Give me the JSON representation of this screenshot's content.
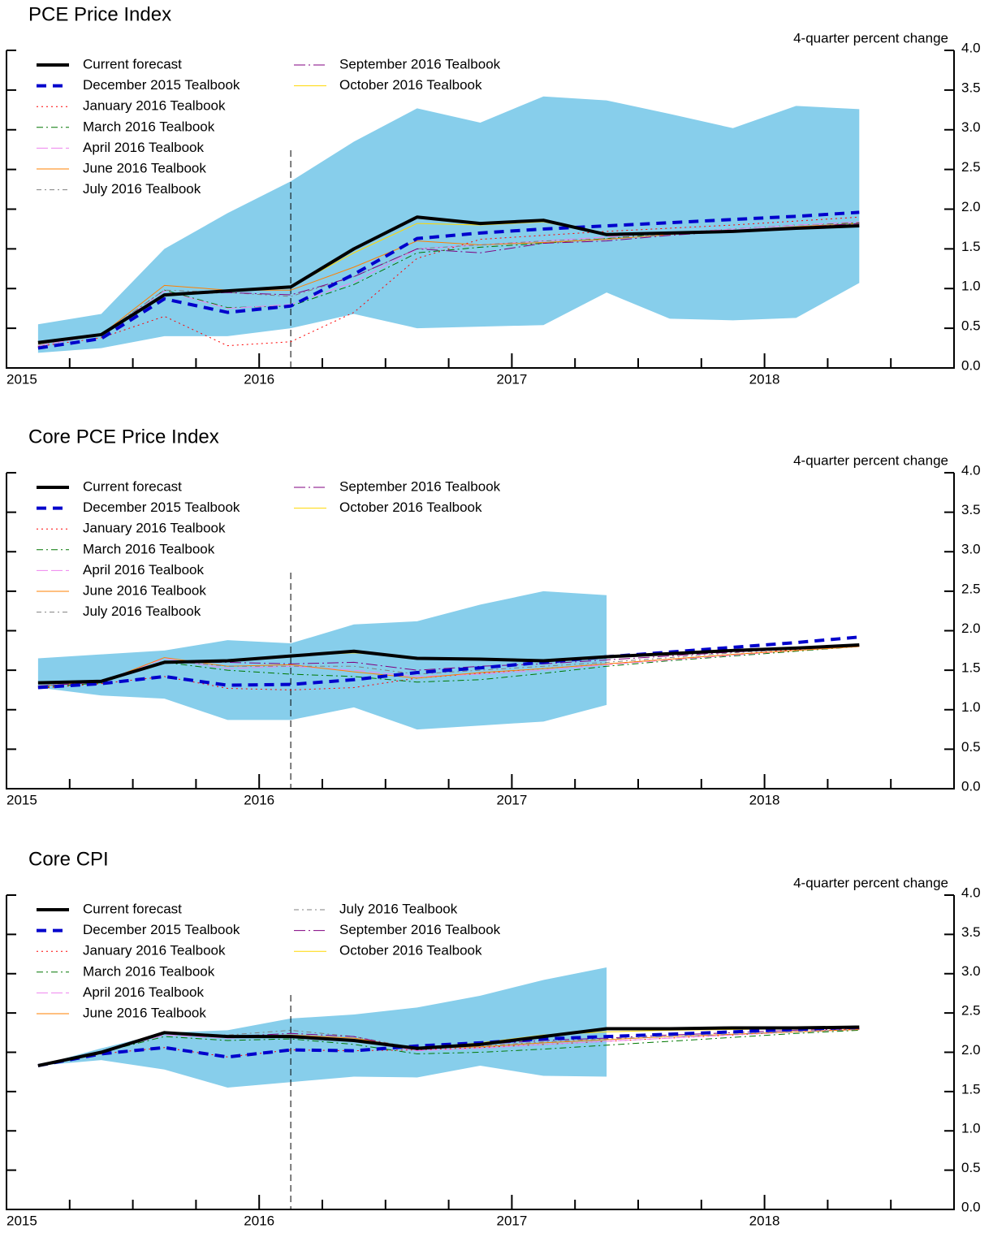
{
  "chart_data": [
    {
      "type": "line",
      "title": "PCE Price Index",
      "ylabel": "4-quarter percent change",
      "x": [
        2015.125,
        2015.375,
        2015.625,
        2015.875,
        2016.125,
        2016.375,
        2016.625,
        2016.875,
        2017.125,
        2017.375,
        2017.625,
        2017.875,
        2018.125,
        2018.375
      ],
      "xlim": [
        2015,
        2018.75
      ],
      "xticks": [
        2015,
        2016,
        2017,
        2018
      ],
      "xminorticks": [
        2015.25,
        2015.5,
        2015.75,
        2016.25,
        2016.5,
        2016.75,
        2017.25,
        2017.5,
        2017.75,
        2018.25,
        2018.5
      ],
      "vline": 2016.125,
      "ylim": [
        0,
        4
      ],
      "yticks": [
        {
          "value": 0,
          "label": "0.0"
        },
        {
          "value": 0.5,
          "label": "0.5"
        },
        {
          "value": 1,
          "label": "1.0"
        },
        {
          "value": 1.5,
          "label": "1.5"
        },
        {
          "value": 2,
          "label": "2.0"
        },
        {
          "value": 2.5,
          "label": "2.5"
        },
        {
          "value": 3,
          "label": "3.0"
        },
        {
          "value": 3.5,
          "label": "3.5"
        },
        {
          "value": 4,
          "label": "4.0"
        }
      ],
      "band": {
        "color": "#87ceeb",
        "upper": [
          0.55,
          0.68,
          1.5,
          1.95,
          2.35,
          2.85,
          3.27,
          3.09,
          3.42,
          3.37,
          3.2,
          3.02,
          3.3,
          3.26
        ],
        "lower": [
          0.19,
          0.25,
          0.4,
          0.4,
          0.5,
          0.68,
          0.5,
          0.52,
          0.54,
          0.95,
          0.62,
          0.6,
          0.63,
          1.07
        ]
      },
      "series": [
        {
          "name": "Current forecast",
          "color": "#000000",
          "width": 4,
          "dash": "none",
          "values": [
            0.32,
            0.42,
            0.92,
            0.97,
            1.02,
            1.5,
            1.9,
            1.82,
            1.86,
            1.68,
            1.7,
            1.72,
            1.76,
            1.79
          ]
        },
        {
          "name": "December 2015 Tealbook",
          "color": "#0000cc",
          "width": 4,
          "dash": "12,8",
          "values": [
            0.25,
            0.37,
            0.87,
            0.7,
            0.78,
            1.18,
            1.63,
            1.7,
            1.75,
            1.79,
            1.83,
            1.87,
            1.91,
            1.96
          ]
        },
        {
          "name": "January 2016 Tealbook",
          "color": "#ff0000",
          "width": 1,
          "dash": "2,4",
          "values": [
            0.27,
            0.38,
            0.65,
            0.28,
            0.33,
            0.7,
            1.38,
            1.62,
            1.67,
            1.72,
            1.76,
            1.8,
            1.85,
            1.9
          ]
        },
        {
          "name": "March 2016 Tealbook",
          "color": "#007700",
          "width": 1,
          "dash": "8,4,2,4",
          "values": [
            0.28,
            0.42,
            0.98,
            0.76,
            0.78,
            1.05,
            1.45,
            1.52,
            1.57,
            1.63,
            1.7,
            1.75,
            1.8,
            1.83
          ]
        },
        {
          "name": "April 2016 Tealbook",
          "color": "#ee82ee",
          "width": 1,
          "dash": "14,4",
          "values": [
            0.28,
            0.42,
            0.97,
            0.75,
            0.8,
            1.08,
            1.5,
            1.55,
            1.6,
            1.65,
            1.7,
            1.75,
            1.8,
            1.84
          ]
        },
        {
          "name": "June 2016 Tealbook",
          "color": "#ff8000",
          "width": 1,
          "dash": "none",
          "values": [
            0.3,
            0.42,
            1.04,
            0.98,
            0.98,
            1.27,
            1.6,
            1.55,
            1.58,
            1.62,
            1.68,
            1.73,
            1.78,
            1.82
          ]
        },
        {
          "name": "July 2016 Tealbook",
          "color": "#808080",
          "width": 1,
          "dash": "6,4,2,4",
          "values": [
            0.3,
            0.42,
            0.98,
            0.95,
            0.9,
            1.15,
            1.5,
            1.55,
            1.6,
            1.63,
            1.68,
            1.72,
            1.77,
            1.82
          ]
        },
        {
          "name": "September 2016 Tealbook",
          "color": "#800080",
          "width": 1,
          "dash": "14,4,2,4",
          "values": [
            0.3,
            0.42,
            0.92,
            0.95,
            0.92,
            1.15,
            1.5,
            1.45,
            1.57,
            1.6,
            1.67,
            1.72,
            1.77,
            1.82
          ]
        },
        {
          "name": "October 2016 Tealbook",
          "color": "#ffd700",
          "width": 1,
          "dash": "none",
          "values": [
            0.3,
            0.42,
            0.92,
            0.97,
            1.02,
            1.45,
            1.82,
            1.8,
            1.84,
            1.68,
            1.7,
            1.73,
            1.77,
            1.8
          ]
        }
      ]
    },
    {
      "type": "line",
      "title": "Core PCE Price Index",
      "ylabel": "4-quarter percent change",
      "x": [
        2015.125,
        2015.375,
        2015.625,
        2015.875,
        2016.125,
        2016.375,
        2016.625,
        2016.875,
        2017.125,
        2017.375,
        2017.625,
        2017.875,
        2018.125,
        2018.375
      ],
      "xlim": [
        2015,
        2018.75
      ],
      "xticks": [
        2015,
        2016,
        2017,
        2018
      ],
      "xminorticks": [
        2015.25,
        2015.5,
        2015.75,
        2016.25,
        2016.5,
        2016.75,
        2017.25,
        2017.5,
        2017.75,
        2018.25,
        2018.5
      ],
      "vline": 2016.125,
      "ylim": [
        0,
        4
      ],
      "yticks": [
        {
          "value": 0,
          "label": "0.0"
        },
        {
          "value": 0.5,
          "label": "0.5"
        },
        {
          "value": 1,
          "label": "1.0"
        },
        {
          "value": 1.5,
          "label": "1.5"
        },
        {
          "value": 2,
          "label": "2.0"
        },
        {
          "value": 2.5,
          "label": "2.5"
        },
        {
          "value": 3,
          "label": "3.0"
        },
        {
          "value": 3.5,
          "label": "3.5"
        },
        {
          "value": 4,
          "label": "4.0"
        }
      ],
      "band": {
        "color": "#87ceeb",
        "upper": [
          1.65,
          1.7,
          1.75,
          1.88,
          1.84,
          2.08,
          2.12,
          2.33,
          2.5,
          2.45,
          null,
          null,
          null,
          null
        ],
        "lower": [
          1.28,
          1.18,
          1.14,
          0.87,
          0.87,
          1.03,
          0.75,
          0.8,
          0.85,
          1.06,
          null,
          null,
          null,
          null
        ]
      },
      "series": [
        {
          "name": "Current forecast",
          "color": "#000000",
          "width": 4,
          "dash": "none",
          "values": [
            1.34,
            1.36,
            1.6,
            1.62,
            1.68,
            1.74,
            1.65,
            1.64,
            1.62,
            1.67,
            1.71,
            1.75,
            1.78,
            1.82
          ]
        },
        {
          "name": "December 2015 Tealbook",
          "color": "#0000cc",
          "width": 4,
          "dash": "12,8",
          "values": [
            1.28,
            1.33,
            1.42,
            1.31,
            1.32,
            1.38,
            1.47,
            1.53,
            1.6,
            1.67,
            1.73,
            1.79,
            1.85,
            1.92
          ]
        },
        {
          "name": "January 2016 Tealbook",
          "color": "#ff0000",
          "width": 1,
          "dash": "2,4",
          "values": [
            1.27,
            1.33,
            1.42,
            1.27,
            1.25,
            1.28,
            1.4,
            1.46,
            1.52,
            1.58,
            1.64,
            1.7,
            1.76,
            1.82
          ]
        },
        {
          "name": "March 2016 Tealbook",
          "color": "#007700",
          "width": 1,
          "dash": "8,4,2,4",
          "values": [
            1.28,
            1.34,
            1.6,
            1.5,
            1.45,
            1.42,
            1.35,
            1.38,
            1.46,
            1.55,
            1.62,
            1.68,
            1.74,
            1.8
          ]
        },
        {
          "name": "April 2016 Tealbook",
          "color": "#ee82ee",
          "width": 1,
          "dash": "14,4",
          "values": [
            1.3,
            1.35,
            1.65,
            1.52,
            1.55,
            1.5,
            1.42,
            1.45,
            1.5,
            1.57,
            1.63,
            1.69,
            1.75,
            1.8
          ]
        },
        {
          "name": "June 2016 Tealbook",
          "color": "#ff8000",
          "width": 1,
          "dash": "none",
          "values": [
            1.3,
            1.35,
            1.66,
            1.55,
            1.57,
            1.48,
            1.4,
            1.47,
            1.52,
            1.58,
            1.64,
            1.7,
            1.75,
            1.8
          ]
        },
        {
          "name": "July 2016 Tealbook",
          "color": "#808080",
          "width": 1,
          "dash": "6,4,2,4",
          "values": [
            1.3,
            1.35,
            1.62,
            1.55,
            1.55,
            1.55,
            1.45,
            1.5,
            1.55,
            1.6,
            1.66,
            1.72,
            1.77,
            1.81
          ]
        },
        {
          "name": "September 2016 Tealbook",
          "color": "#800080",
          "width": 1,
          "dash": "14,4,2,4",
          "values": [
            1.3,
            1.35,
            1.6,
            1.6,
            1.58,
            1.6,
            1.5,
            1.55,
            1.58,
            1.63,
            1.68,
            1.73,
            1.77,
            1.81
          ]
        },
        {
          "name": "October 2016 Tealbook",
          "color": "#ffd700",
          "width": 1,
          "dash": "none",
          "values": [
            1.33,
            1.36,
            1.6,
            1.62,
            1.68,
            1.72,
            1.66,
            1.65,
            1.63,
            1.67,
            1.71,
            1.75,
            1.78,
            1.82
          ]
        }
      ]
    },
    {
      "type": "line",
      "title": "Core CPI",
      "ylabel": "4-quarter percent change",
      "x": [
        2015.125,
        2015.375,
        2015.625,
        2015.875,
        2016.125,
        2016.375,
        2016.625,
        2016.875,
        2017.125,
        2017.375,
        2017.625,
        2017.875,
        2018.125,
        2018.375
      ],
      "xlim": [
        2015,
        2018.75
      ],
      "xticks": [
        2015,
        2016,
        2017,
        2018
      ],
      "xminorticks": [
        2015.25,
        2015.5,
        2015.75,
        2016.25,
        2016.5,
        2016.75,
        2017.25,
        2017.5,
        2017.75,
        2018.25,
        2018.5
      ],
      "vline": 2016.125,
      "ylim": [
        0,
        4
      ],
      "yticks": [
        {
          "value": 0,
          "label": "0.0"
        },
        {
          "value": 0.5,
          "label": "0.5"
        },
        {
          "value": 1,
          "label": "1.0"
        },
        {
          "value": 1.5,
          "label": "1.5"
        },
        {
          "value": 2,
          "label": "2.0"
        },
        {
          "value": 2.5,
          "label": "2.5"
        },
        {
          "value": 3,
          "label": "3.0"
        },
        {
          "value": 3.5,
          "label": "3.5"
        },
        {
          "value": 4,
          "label": "4.0"
        }
      ],
      "band": {
        "color": "#87ceeb",
        "upper": [
          1.83,
          2.05,
          2.25,
          2.28,
          2.43,
          2.48,
          2.57,
          2.72,
          2.92,
          3.08,
          null,
          null,
          null,
          null
        ],
        "lower": [
          1.83,
          1.9,
          1.78,
          1.55,
          1.62,
          1.69,
          1.68,
          1.83,
          1.7,
          1.69,
          null,
          null,
          null,
          null
        ]
      },
      "series": [
        {
          "name": "Current forecast",
          "color": "#000000",
          "width": 4,
          "dash": "none",
          "values": [
            1.83,
            2.0,
            2.25,
            2.2,
            2.2,
            2.15,
            2.05,
            2.1,
            2.2,
            2.3,
            2.3,
            2.31,
            2.31,
            2.32
          ]
        },
        {
          "name": "December 2015 Tealbook",
          "color": "#0000cc",
          "width": 4,
          "dash": "12,8",
          "values": [
            1.83,
            1.98,
            2.06,
            1.94,
            2.03,
            2.02,
            2.08,
            2.12,
            2.17,
            2.2,
            2.23,
            2.26,
            2.29,
            2.32
          ]
        },
        {
          "name": "January 2016 Tealbook",
          "color": "#ff0000",
          "width": 1,
          "dash": "2,4",
          "values": [
            1.83,
            1.98,
            2.06,
            1.94,
            2.03,
            2.02,
            2.03,
            2.06,
            2.1,
            2.14,
            2.18,
            2.22,
            2.26,
            2.3
          ]
        },
        {
          "name": "March 2016 Tealbook",
          "color": "#007700",
          "width": 1,
          "dash": "8,4,2,4",
          "values": [
            1.83,
            2.0,
            2.2,
            2.15,
            2.17,
            2.1,
            1.98,
            2.0,
            2.04,
            2.09,
            2.14,
            2.19,
            2.24,
            2.28
          ]
        },
        {
          "name": "April 2016 Tealbook",
          "color": "#ee82ee",
          "width": 1,
          "dash": "14,4",
          "values": [
            1.83,
            2.0,
            2.22,
            2.18,
            2.2,
            2.15,
            2.02,
            2.05,
            2.1,
            2.14,
            2.18,
            2.22,
            2.26,
            2.29
          ]
        },
        {
          "name": "June 2016 Tealbook",
          "color": "#ff8000",
          "width": 1,
          "dash": "none",
          "values": [
            1.83,
            2.0,
            2.24,
            2.2,
            2.22,
            2.18,
            2.05,
            2.07,
            2.12,
            2.16,
            2.2,
            2.23,
            2.26,
            2.29
          ]
        },
        {
          "name": "July 2016 Tealbook",
          "color": "#808080",
          "width": 1,
          "dash": "6,4,2,4",
          "values": [
            1.83,
            2.0,
            2.24,
            2.22,
            2.28,
            2.2,
            2.05,
            2.08,
            2.13,
            2.17,
            2.2,
            2.23,
            2.26,
            2.29
          ]
        },
        {
          "name": "September 2016 Tealbook",
          "color": "#800080",
          "width": 1,
          "dash": "14,4,2,4",
          "values": [
            1.83,
            2.0,
            2.25,
            2.2,
            2.24,
            2.2,
            2.03,
            2.1,
            2.15,
            2.18,
            2.22,
            2.25,
            2.28,
            2.3
          ]
        },
        {
          "name": "October 2016 Tealbook",
          "color": "#ffd700",
          "width": 1,
          "dash": "none",
          "values": [
            1.83,
            2.0,
            2.25,
            2.2,
            2.2,
            2.15,
            2.05,
            2.12,
            2.22,
            2.26,
            2.28,
            2.29,
            2.3,
            2.31
          ]
        }
      ]
    }
  ]
}
